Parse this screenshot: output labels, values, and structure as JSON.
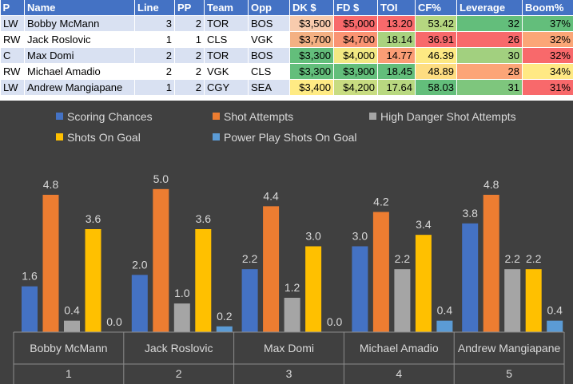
{
  "table": {
    "headers": [
      "P",
      "Name",
      "Line",
      "PP",
      "Team",
      "Opp",
      "DK $",
      "FD $",
      "TOI",
      "CF%",
      "Leverage",
      "Boom%"
    ],
    "rows": [
      {
        "p": "LW",
        "name": "Bobby McMann",
        "line": "3",
        "pp": "2",
        "team": "TOR",
        "opp": "BOS",
        "dk": "$3,500",
        "fd": "$5,000",
        "toi": "13.20",
        "cf": "53.42",
        "leverage": "32",
        "boom": "37%"
      },
      {
        "p": "RW",
        "name": "Jack Roslovic",
        "line": "1",
        "pp": "1",
        "team": "CLS",
        "opp": "VGK",
        "dk": "$3,700",
        "fd": "$4,700",
        "toi": "18.14",
        "cf": "36.91",
        "leverage": "26",
        "boom": "32%"
      },
      {
        "p": "C",
        "name": "Max Domi",
        "line": "2",
        "pp": "2",
        "team": "TOR",
        "opp": "BOS",
        "dk": "$3,300",
        "fd": "$4,000",
        "toi": "14.77",
        "cf": "46.39",
        "leverage": "30",
        "boom": "32%"
      },
      {
        "p": "RW",
        "name": "Michael Amadio",
        "line": "2",
        "pp": "2",
        "team": "VGK",
        "opp": "CLS",
        "dk": "$3,300",
        "fd": "$3,900",
        "toi": "18.45",
        "cf": "48.89",
        "leverage": "28",
        "boom": "34%"
      },
      {
        "p": "LW",
        "name": "Andrew Mangiapane",
        "line": "1",
        "pp": "2",
        "team": "CGY",
        "opp": "SEA",
        "dk": "$3,400",
        "fd": "$4,200",
        "toi": "17.64",
        "cf": "58.03",
        "leverage": "31",
        "boom": "31%"
      }
    ],
    "cell_colors": {
      "dk": [
        "#f8cbad",
        "#f4b183",
        "#63be7b",
        "#63be7b",
        "#ffeb84"
      ],
      "fd": [
        "#f8696b",
        "#fa9473",
        "#f2e883",
        "#63be7b",
        "#c8dc81"
      ],
      "toi": [
        "#f8696b",
        "#a9d27f",
        "#fa9d75",
        "#63be7b",
        "#b8d880"
      ],
      "cf": [
        "#b5d780",
        "#f8696b",
        "#fde983",
        "#fedd81",
        "#63be7b"
      ],
      "leverage": [
        "#63be7b",
        "#f8696b",
        "#a2d07f",
        "#fca577",
        "#7ec67d"
      ],
      "boom": [
        "#63be7b",
        "#fba677",
        "#f8696b",
        "#ffe984",
        "#f8696b"
      ]
    }
  },
  "chart_data": {
    "type": "bar",
    "title": "",
    "xlabel": "",
    "ylabel": "",
    "ylim": [
      0,
      6
    ],
    "grid": false,
    "legend_position": "top",
    "categories": [
      {
        "name": "Bobby McMann",
        "index": "1"
      },
      {
        "name": "Jack Roslovic",
        "index": "2"
      },
      {
        "name": "Max Domi",
        "index": "3"
      },
      {
        "name": "Michael Amadio",
        "index": "4"
      },
      {
        "name": "Andrew Mangiapane",
        "index": "5"
      }
    ],
    "series": [
      {
        "name": "Scoring Chances",
        "color": "#4472c4",
        "values": [
          1.6,
          2.0,
          2.2,
          3.0,
          3.8
        ],
        "labels": [
          "1.6",
          "2.0",
          "2.2",
          "3.0",
          "3.8"
        ]
      },
      {
        "name": "Shot Attempts",
        "color": "#ed7d31",
        "values": [
          4.8,
          5.0,
          4.4,
          4.2,
          4.8
        ],
        "labels": [
          "4.8",
          "5.0",
          "4.4",
          "4.2",
          "4.8"
        ]
      },
      {
        "name": "High Danger Shot Attempts",
        "color": "#a5a5a5",
        "values": [
          0.4,
          1.0,
          1.2,
          2.2,
          2.2
        ],
        "labels": [
          "0.4",
          "1.0",
          "1.2",
          "2.2",
          "2.2"
        ]
      },
      {
        "name": "Shots On Goal",
        "color": "#ffc000",
        "values": [
          3.6,
          3.6,
          3.0,
          3.4,
          2.2
        ],
        "labels": [
          "3.6",
          "3.6",
          "3.0",
          "3.4",
          "2.2"
        ]
      },
      {
        "name": "Power Play Shots On Goal",
        "color": "#5b9bd5",
        "values": [
          0.0,
          0.2,
          0.0,
          0.4,
          0.4
        ],
        "labels": [
          "0.0",
          "0.2",
          "0.0",
          "0.4",
          "0.4"
        ]
      }
    ]
  }
}
